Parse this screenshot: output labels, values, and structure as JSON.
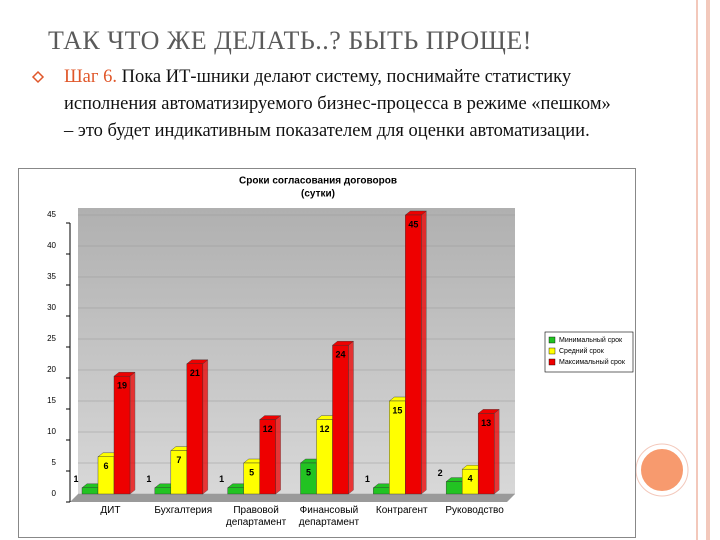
{
  "slide": {
    "title": "ТАК ЧТО ЖЕ ДЕЛАТЬ..? БЫТЬ ПРОЩЕ!",
    "bullet": {
      "label": "Шаг 6.",
      "text": "Пока ИТ-шники делают систему, поснимайте статистику исполнения автоматизируемого бизнес-процесса в режиме «пешком» – это будет индикативным показателем для оценки автоматизации."
    }
  },
  "chart_data": {
    "type": "bar",
    "title": "Сроки согласования договоров",
    "subtitle": "(сутки)",
    "categories": [
      "ДИТ",
      "Бухгалтерия",
      "Правовой департамент",
      "Финансовый департамент",
      "Контрагент",
      "Руководство"
    ],
    "series": [
      {
        "name": "Минимальный срок",
        "color": "#22c322",
        "values": [
          1,
          1,
          1,
          5,
          1,
          2
        ]
      },
      {
        "name": "Средний срок",
        "color": "#ffff00",
        "values": [
          6,
          7,
          5,
          12,
          15,
          4
        ]
      },
      {
        "name": "Максимальный срок",
        "color": "#ee0000",
        "values": [
          19,
          21,
          12,
          24,
          45,
          13
        ]
      }
    ],
    "ylim": [
      0,
      45
    ],
    "yticks": [
      0,
      5,
      10,
      15,
      20,
      25,
      30,
      35,
      40,
      45
    ],
    "grid": true,
    "legend": "right"
  }
}
